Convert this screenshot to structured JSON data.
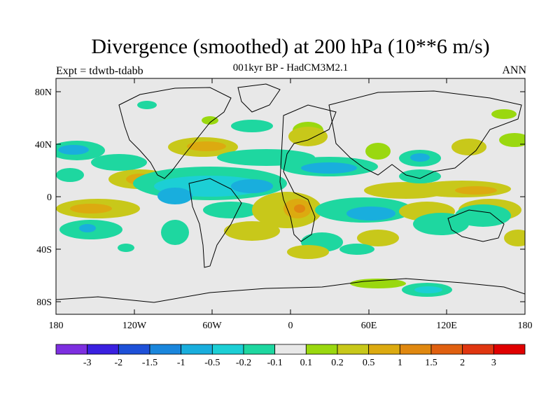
{
  "header": {
    "title": "Divergence (smoothed) at 200 hPa (10**6 m/s)",
    "subtitle": "001kyr BP - HadCM3M2.1",
    "left_label": "Expt = tdwtb-tdabb",
    "right_label": "ANN"
  },
  "axes": {
    "y_ticks": [
      "80N",
      "40N",
      "0",
      "40S",
      "80S"
    ],
    "x_ticks": [
      "180",
      "120W",
      "60W",
      "0",
      "60E",
      "120E",
      "180"
    ]
  },
  "colorbar": {
    "labels": [
      "-3",
      "-2",
      "-1.5",
      "-1",
      "-0.5",
      "-0.2",
      "-0.1",
      "0.1",
      "0.2",
      "0.5",
      "1",
      "1.5",
      "2",
      "3"
    ],
    "colors": [
      "#7d2fe0",
      "#3a20e0",
      "#1e50d8",
      "#1a86dc",
      "#19aedd",
      "#1ccfd5",
      "#1ed7a0",
      "#e8e8e8",
      "#9ad80f",
      "#c8c81a",
      "#dcaa10",
      "#e08810",
      "#e06010",
      "#e03610",
      "#e00000"
    ]
  },
  "palette": {
    "background": "#e8e8e8",
    "land_outline": "#000000"
  }
}
